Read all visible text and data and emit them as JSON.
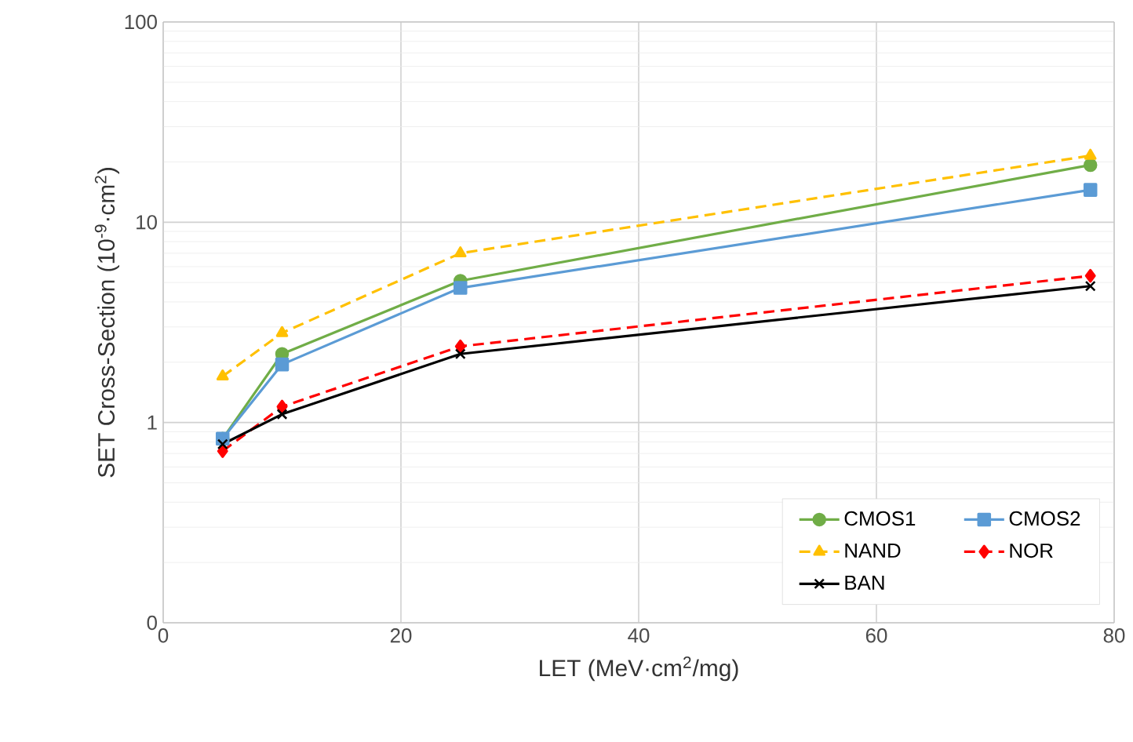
{
  "chart_data": {
    "type": "line",
    "xlabel": "LET (MeV·cm$^{2}$/mg)",
    "ylabel": "SET Cross-Section (10$^{-9}$·cm$^{2}$)",
    "x": [
      5,
      10,
      25,
      78
    ],
    "series": [
      {
        "name": "CMOS1",
        "color": "#70ad47",
        "values": [
          0.83,
          2.2,
          5.1,
          19.3
        ],
        "marker": "circle",
        "line_style": "solid"
      },
      {
        "name": "CMOS2",
        "color": "#5b9bd5",
        "values": [
          0.83,
          1.95,
          4.7,
          14.5
        ],
        "marker": "square",
        "line_style": "solid"
      },
      {
        "name": "NAND",
        "color": "#ffc000",
        "values": [
          1.7,
          2.8,
          7.0,
          21.5
        ],
        "marker": "triangle",
        "line_style": "dashed"
      },
      {
        "name": "NOR",
        "color": "#ff0000",
        "values": [
          0.72,
          1.2,
          2.4,
          5.4
        ],
        "marker": "diamond",
        "line_style": "dashed"
      },
      {
        "name": "BAN",
        "color": "#000000",
        "values": [
          0.78,
          1.1,
          2.2,
          4.8
        ],
        "marker": "cross",
        "line_style": "solid"
      }
    ],
    "xlim": [
      0,
      80
    ],
    "xticks": [
      0,
      20,
      40,
      60,
      80
    ],
    "ylim": [
      0.1,
      100
    ],
    "yticks": [
      {
        "value": 0.1,
        "label": "0"
      },
      1,
      10,
      100
    ],
    "log": "y",
    "grid": true,
    "legend": "bottom right"
  }
}
